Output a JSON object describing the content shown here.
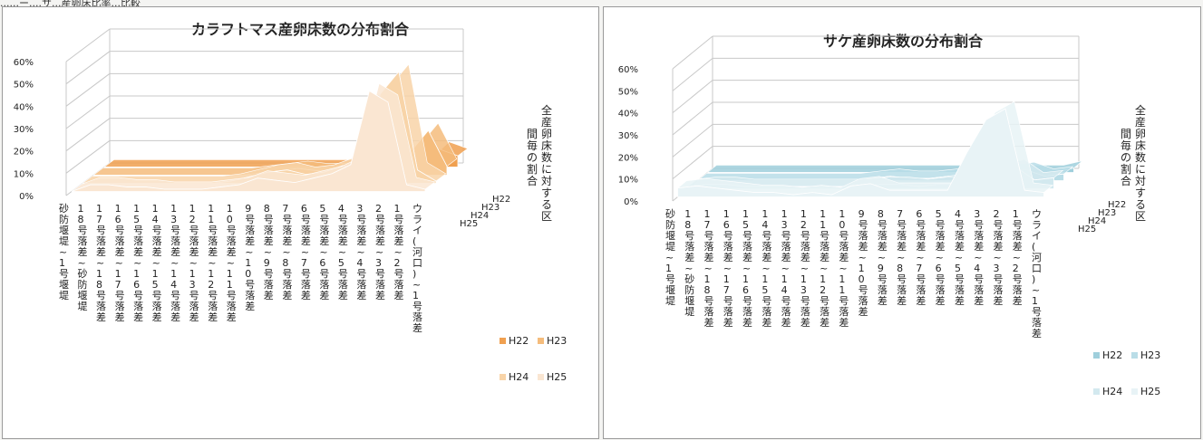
{
  "header": {
    "partial_text": "......ー....サ...産卵床比率...比較"
  },
  "colors": {
    "left_series": [
      "#f0a050",
      "#f5bc7c",
      "#f8d4a8",
      "#fae6d2"
    ],
    "right_series": [
      "#9fcfdc",
      "#b9dde7",
      "#d3e9ef",
      "#e8f3f6"
    ],
    "grid": "#c8c8c8"
  },
  "chart_data": [
    {
      "type": "area",
      "title": "カラフトマス産卵床数の分布割合",
      "xlabel": "",
      "ylabel": "全産卵床数に対する区間毎の割合",
      "ylim": [
        0,
        60
      ],
      "y_ticks": [
        "0%",
        "10%",
        "20%",
        "30%",
        "40%",
        "50%",
        "60%"
      ],
      "grid": true,
      "legend_position": "bottom-right",
      "categories": [
        "砂防堰堤~1号堰堤",
        "18号落差~砂防堰堤",
        "17号落差~18号落差",
        "16号落差~17号落差",
        "15号落差~16号落差",
        "14号落差~15号落差",
        "13号落差~14号落差",
        "12号落差~13号落差",
        "11号落差~12号落差",
        "10号落差~11号落差",
        "9号落差~10号落差",
        "8号落差~9号落差",
        "7号落差~8号落差",
        "6号落差~7号落差",
        "5号落差~6号落差",
        "4号落差~5号落差",
        "3号落差~4号落差",
        "2号落差~3号落差",
        "1号落差~2号落差",
        "ウライ(河口)~1号落差"
      ],
      "series": [
        {
          "name": "H22",
          "values": [
            0,
            0,
            0,
            0,
            0,
            0,
            0,
            0,
            0,
            0,
            0,
            0,
            0,
            0,
            0,
            0,
            0,
            0,
            8,
            5
          ]
        },
        {
          "name": "H23",
          "values": [
            0,
            0,
            0,
            0,
            0,
            0,
            0,
            0,
            0,
            1,
            2,
            3,
            2,
            2,
            3,
            4,
            6,
            10,
            20,
            4
          ]
        },
        {
          "name": "H24",
          "values": [
            0,
            0,
            0,
            0,
            0,
            0,
            0,
            0,
            1,
            3,
            5,
            6,
            4,
            5,
            8,
            5,
            40,
            50,
            6,
            1
          ]
        },
        {
          "name": "H25",
          "values": [
            0,
            3,
            3,
            2,
            2,
            1,
            1,
            1,
            2,
            3,
            6,
            5,
            4,
            6,
            8,
            12,
            45,
            40,
            3,
            1
          ]
        }
      ]
    },
    {
      "type": "area",
      "title": "サケ産卵床数の分布割合",
      "xlabel": "",
      "ylabel": "全産卵床数に対する区間毎の割合",
      "ylim": [
        0,
        60
      ],
      "y_ticks": [
        "0%",
        "10%",
        "20%",
        "30%",
        "40%",
        "50%",
        "60%"
      ],
      "grid": true,
      "legend_position": "bottom-right",
      "categories": [
        "砂防堰堤~1号堰堤",
        "18号落差~砂防堰堤",
        "17号落差~18号落差",
        "16号落差~17号落差",
        "15号落差~16号落差",
        "14号落差~15号落差",
        "13号落差~14号落差",
        "12号落差~13号落差",
        "11号落差~12号落差",
        "10号落差~11号落差",
        "9号落差~10号落差",
        "8号落差~9号落差",
        "7号落差~8号落差",
        "6号落差~7号落差",
        "5号落差~6号落差",
        "4号落差~5号落差",
        "3号落差~4号落差",
        "2号落差~3号落差",
        "1号落差~2号落差",
        "ウライ(河口)~1号落差"
      ],
      "series": [
        {
          "name": "H22",
          "values": [
            0,
            0,
            0,
            0,
            0,
            0,
            0,
            0,
            0,
            0,
            0,
            0,
            0,
            0,
            0,
            0,
            0,
            0,
            0,
            2
          ]
        },
        {
          "name": "H23",
          "values": [
            0,
            0,
            0,
            0,
            0,
            0,
            0,
            0,
            0,
            1,
            2,
            1,
            1,
            2,
            3,
            3,
            4,
            5,
            2,
            3
          ]
        },
        {
          "name": "H24",
          "values": [
            1,
            2,
            2,
            1,
            1,
            1,
            1,
            1,
            1,
            1,
            2,
            2,
            1,
            2,
            2,
            4,
            8,
            10,
            4,
            5
          ]
        },
        {
          "name": "H25",
          "values": [
            4,
            5,
            4,
            3,
            2,
            2,
            1,
            2,
            1,
            5,
            6,
            3,
            3,
            3,
            3,
            20,
            35,
            40,
            3,
            2
          ]
        }
      ]
    }
  ]
}
